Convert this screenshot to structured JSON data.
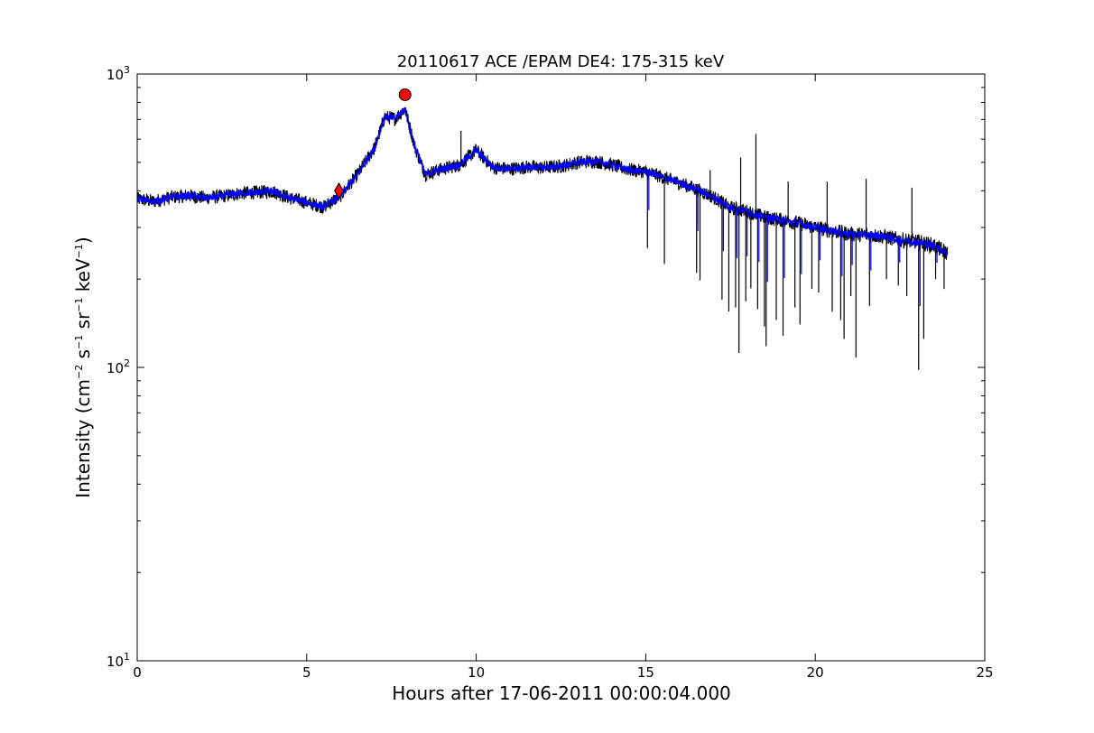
{
  "chart_data": {
    "type": "line",
    "title": "20110617 ACE /EPAM DE4: 175-315 keV",
    "xlabel": "Hours after 17-06-2011 00:00:04.000",
    "ylabel": {
      "prefix": "Intensity (cm",
      "e1": "−2",
      "s": " s",
      "e2": "−1",
      "sr": " sr",
      "e3": "−1",
      "kev": " keV",
      "e4": "−1",
      "suffix": ")"
    },
    "xlim": [
      0,
      25
    ],
    "ylim": [
      10,
      1000
    ],
    "yscale": "log",
    "grid": false,
    "x_ticks": [
      {
        "value": 0,
        "label": "0"
      },
      {
        "value": 5,
        "label": "5"
      },
      {
        "value": 10,
        "label": "10"
      },
      {
        "value": 15,
        "label": "15"
      },
      {
        "value": 20,
        "label": "20"
      },
      {
        "value": 25,
        "label": "25"
      }
    ],
    "y_ticks": [
      {
        "value": 10,
        "base": "10",
        "exp": "1"
      },
      {
        "value": 100,
        "base": "10",
        "exp": "2"
      },
      {
        "value": 1000,
        "base": "10",
        "exp": "3"
      }
    ],
    "series": [
      {
        "color": "#000000",
        "style": "noisy",
        "x": [
          0,
          0.5,
          1,
          1.5,
          2,
          2.5,
          3,
          3.5,
          4,
          4.5,
          5,
          5.5,
          6,
          6.5,
          7,
          7.3,
          7.6,
          7.9,
          8.2,
          8.5,
          9,
          9.5,
          10,
          10.5,
          11,
          11.5,
          12,
          12.5,
          13,
          13.5,
          14,
          14.5,
          15,
          15.5,
          16,
          16.5,
          17,
          17.5,
          18,
          18.5,
          19,
          19.5,
          20,
          20.5,
          21,
          21.5,
          22,
          22.5,
          23,
          23.5,
          23.9
        ],
        "y": [
          375,
          368,
          380,
          385,
          378,
          383,
          392,
          395,
          398,
          378,
          365,
          352,
          385,
          455,
          560,
          715,
          705,
          760,
          560,
          455,
          475,
          490,
          550,
          480,
          475,
          482,
          480,
          485,
          500,
          505,
          490,
          472,
          465,
          445,
          425,
          405,
          380,
          350,
          340,
          325,
          318,
          310,
          300,
          292,
          285,
          283,
          280,
          272,
          268,
          260,
          245
        ]
      },
      {
        "color": "#0000ff",
        "style": "smoothed",
        "x": [
          0,
          0.5,
          1,
          1.5,
          2,
          2.5,
          3,
          3.5,
          4,
          4.5,
          5,
          5.5,
          6,
          6.5,
          7,
          7.3,
          7.6,
          7.9,
          8.2,
          8.5,
          9,
          9.5,
          10,
          10.5,
          11,
          11.5,
          12,
          12.5,
          13,
          13.5,
          14,
          14.5,
          15,
          15.5,
          16,
          16.5,
          17,
          17.5,
          18,
          18.5,
          19,
          19.5,
          20,
          20.5,
          21,
          21.5,
          22,
          22.5,
          23,
          23.5,
          23.9
        ],
        "y": [
          375,
          368,
          380,
          385,
          378,
          383,
          392,
          395,
          398,
          378,
          365,
          352,
          385,
          455,
          560,
          715,
          705,
          760,
          560,
          455,
          475,
          490,
          550,
          480,
          475,
          482,
          480,
          485,
          500,
          505,
          490,
          472,
          465,
          445,
          425,
          405,
          380,
          350,
          340,
          325,
          318,
          310,
          300,
          292,
          285,
          283,
          280,
          272,
          268,
          260,
          245
        ]
      }
    ],
    "markers": [
      {
        "shape": "diamond",
        "x": 5.95,
        "y": 400,
        "color": "#ff0000"
      },
      {
        "shape": "circle",
        "x": 7.9,
        "y": 850,
        "color": "#ff0000"
      }
    ],
    "spikes": [
      {
        "x": 15.05,
        "y": 255
      },
      {
        "x": 15.55,
        "y": 225
      },
      {
        "x": 16.5,
        "y": 210
      },
      {
        "x": 16.6,
        "y": 198
      },
      {
        "x": 17.25,
        "y": 170
      },
      {
        "x": 17.45,
        "y": 155
      },
      {
        "x": 17.65,
        "y": 160
      },
      {
        "x": 17.75,
        "y": 112
      },
      {
        "x": 17.95,
        "y": 168
      },
      {
        "x": 18.1,
        "y": 186
      },
      {
        "x": 18.3,
        "y": 158
      },
      {
        "x": 18.5,
        "y": 138
      },
      {
        "x": 18.55,
        "y": 118
      },
      {
        "x": 18.85,
        "y": 145
      },
      {
        "x": 19.05,
        "y": 128
      },
      {
        "x": 19.4,
        "y": 160
      },
      {
        "x": 19.55,
        "y": 140
      },
      {
        "x": 19.9,
        "y": 185
      },
      {
        "x": 20.1,
        "y": 180
      },
      {
        "x": 20.5,
        "y": 155
      },
      {
        "x": 20.75,
        "y": 145
      },
      {
        "x": 20.85,
        "y": 125
      },
      {
        "x": 21.05,
        "y": 175
      },
      {
        "x": 21.2,
        "y": 108
      },
      {
        "x": 21.6,
        "y": 162
      },
      {
        "x": 22.1,
        "y": 200
      },
      {
        "x": 22.45,
        "y": 190
      },
      {
        "x": 22.7,
        "y": 175
      },
      {
        "x": 23.05,
        "y": 98
      },
      {
        "x": 23.2,
        "y": 125
      },
      {
        "x": 23.55,
        "y": 200
      },
      {
        "x": 23.8,
        "y": 185
      }
    ],
    "upspikes": [
      {
        "x": 18.25,
        "y": 625
      },
      {
        "x": 17.8,
        "y": 520
      },
      {
        "x": 21.5,
        "y": 440
      },
      {
        "x": 19.2,
        "y": 430
      },
      {
        "x": 22.85,
        "y": 410
      },
      {
        "x": 20.35,
        "y": 430
      },
      {
        "x": 16.9,
        "y": 470
      },
      {
        "x": 9.55,
        "y": 640
      }
    ]
  }
}
